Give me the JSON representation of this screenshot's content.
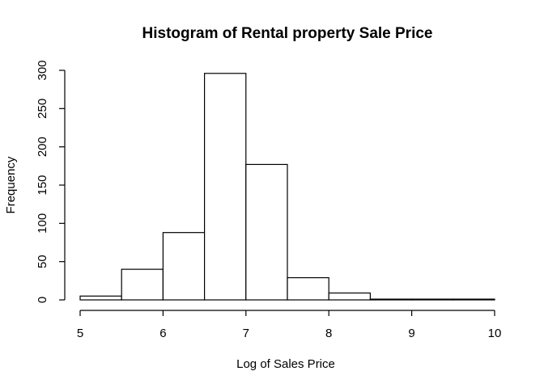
{
  "chart_data": {
    "type": "bar",
    "title": "Histogram of Rental property Sale Price",
    "xlabel": "Log of Sales Price",
    "ylabel": "Frequency",
    "bins": [
      {
        "start": 5.0,
        "end": 5.5,
        "count": 5
      },
      {
        "start": 5.5,
        "end": 6.0,
        "count": 40
      },
      {
        "start": 6.0,
        "end": 6.5,
        "count": 88
      },
      {
        "start": 6.5,
        "end": 7.0,
        "count": 296
      },
      {
        "start": 7.0,
        "end": 7.5,
        "count": 177
      },
      {
        "start": 7.5,
        "end": 8.0,
        "count": 29
      },
      {
        "start": 8.0,
        "end": 8.5,
        "count": 9
      },
      {
        "start": 8.5,
        "end": 9.0,
        "count": 1
      },
      {
        "start": 9.0,
        "end": 9.5,
        "count": 1
      },
      {
        "start": 9.5,
        "end": 10.0,
        "count": 1
      }
    ],
    "xlim": [
      5,
      10
    ],
    "ylim": [
      0,
      300
    ],
    "x_ticks": [
      "5",
      "6",
      "7",
      "8",
      "9",
      "10"
    ],
    "y_ticks": [
      "0",
      "50",
      "100",
      "150",
      "200",
      "250",
      "300"
    ],
    "grid": false,
    "legend": "none"
  }
}
